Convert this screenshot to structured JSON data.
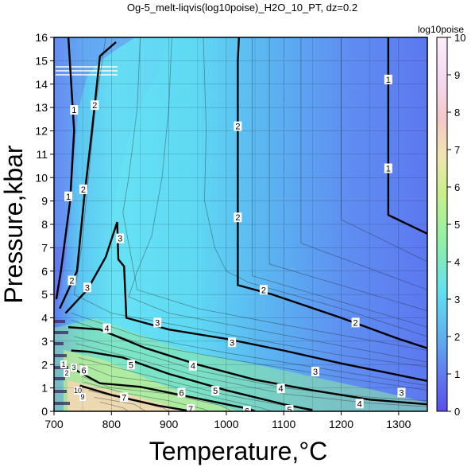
{
  "chart_data": {
    "type": "heatmap",
    "title": "Og-5_melt-liqvis(log10poise)_H2O_10_PT, dz=0.2",
    "xlabel": "Temperature,°C",
    "ylabel": "Pressure,kbar",
    "xlim": [
      700,
      1350
    ],
    "ylim": [
      0,
      16
    ],
    "x_ticks": [
      "700",
      "800",
      "900",
      "1000",
      "1100",
      "1200",
      "1300"
    ],
    "y_ticks": [
      "0",
      "1",
      "2",
      "3",
      "4",
      "5",
      "6",
      "7",
      "8",
      "9",
      "10",
      "11",
      "12",
      "13",
      "14",
      "15",
      "16"
    ],
    "grid": true,
    "colorbar": {
      "label": "log10poise",
      "range": [
        0,
        10
      ],
      "ticks": [
        "0",
        "1",
        "2",
        "3",
        "4",
        "5",
        "6",
        "7",
        "8",
        "9",
        "10"
      ],
      "colors": [
        "#5a4ee8",
        "#5f7cf0",
        "#5fb0f0",
        "#62e0f0",
        "#8ef0a8",
        "#c8f08a",
        "#f0e6b0",
        "#f5c8c8",
        "#f5d8f0",
        "#fbeefa",
        "#ffffff"
      ]
    },
    "contours": [
      {
        "level": "1",
        "points": [
          [
            1282,
            16
          ],
          [
            1282,
            8.4
          ],
          [
            1350,
            7.6
          ]
        ],
        "labels": [
          [
            1282,
            14.2
          ],
          [
            1282,
            10.4
          ]
        ]
      },
      {
        "level": "1",
        "points": [
          [
            725,
            16
          ],
          [
            735,
            12
          ],
          [
            728,
            9
          ],
          [
            712,
            6
          ],
          [
            704,
            4.8
          ]
        ],
        "labels": [
          [
            735,
            12.9
          ],
          [
            725,
            9.2
          ]
        ]
      },
      {
        "level": "2",
        "points": [
          [
            1022,
            16
          ],
          [
            1020,
            15
          ],
          [
            1020,
            5.4
          ],
          [
            1080,
            5
          ],
          [
            1200,
            4
          ],
          [
            1300,
            3.1
          ],
          [
            1350,
            2.7
          ]
        ],
        "labels": [
          [
            1020,
            12.2
          ],
          [
            1020,
            8.3
          ],
          [
            1065,
            5.2
          ],
          [
            1225,
            3.8
          ]
        ]
      },
      {
        "level": "2",
        "points": [
          [
            808,
            15.8
          ],
          [
            780,
            15.2
          ],
          [
            766,
            12
          ],
          [
            752,
            9
          ],
          [
            740,
            6
          ],
          [
            710,
            4.4
          ]
        ],
        "labels": [
          [
            771,
            13.1
          ],
          [
            751,
            9.5
          ],
          [
            731,
            5.6
          ]
        ]
      },
      {
        "level": "3",
        "points": [
          [
            720,
            4.2
          ],
          [
            758,
            5.2
          ],
          [
            790,
            6.6
          ],
          [
            810,
            8.1
          ],
          [
            812,
            6.5
          ],
          [
            822,
            6.2
          ],
          [
            826,
            4
          ],
          [
            900,
            3.5
          ],
          [
            1000,
            3.1
          ],
          [
            1100,
            2.6
          ],
          [
            1200,
            2.05
          ],
          [
            1300,
            1.55
          ],
          [
            1350,
            1.3
          ]
        ],
        "labels": [
          [
            758,
            5.3
          ],
          [
            815,
            7.4
          ],
          [
            880,
            3.8
          ],
          [
            1010,
            2.95
          ],
          [
            1155,
            1.7
          ],
          [
            1305,
            0.8
          ]
        ]
      },
      {
        "level": "4",
        "points": [
          [
            725,
            3.6
          ],
          [
            780,
            3.5
          ],
          [
            860,
            2.7
          ],
          [
            950,
            2.0
          ],
          [
            1050,
            1.35
          ],
          [
            1150,
            0.9
          ],
          [
            1250,
            0.5
          ],
          [
            1350,
            0.3
          ]
        ],
        "labels": [
          [
            792,
            3.55
          ],
          [
            942,
            1.95
          ],
          [
            1095,
            0.98
          ],
          [
            1232,
            0.33
          ]
        ]
      },
      {
        "level": "5",
        "points": [
          [
            730,
            2.6
          ],
          [
            760,
            2.55
          ],
          [
            820,
            2.3
          ],
          [
            900,
            1.6
          ],
          [
            1000,
            0.9
          ],
          [
            1100,
            0.3
          ],
          [
            1150,
            0.05
          ]
        ],
        "labels": [
          [
            834,
            2.0
          ],
          [
            981,
            0.88
          ],
          [
            1110,
            0.07
          ]
        ]
      },
      {
        "level": "6",
        "points": [
          [
            735,
            1.8
          ],
          [
            780,
            1.2
          ],
          [
            850,
            1.05
          ],
          [
            950,
            0.55
          ],
          [
            1040,
            0.1
          ],
          [
            1050,
            0
          ]
        ],
        "labels": [
          [
            752,
            1.75
          ],
          [
            922,
            0.8
          ],
          [
            1036,
            0.02
          ]
        ]
      },
      {
        "level": "7",
        "points": [
          [
            745,
            1.1
          ],
          [
            800,
            0.7
          ],
          [
            880,
            0.25
          ],
          [
            940,
            0
          ]
        ],
        "labels": [
          [
            822,
            0.6
          ],
          [
            938,
            0.1
          ]
        ]
      }
    ],
    "inline_labels": [
      "1",
      "2",
      "3",
      "4",
      "5",
      "6",
      "7",
      "10",
      "9",
      "8"
    ]
  }
}
